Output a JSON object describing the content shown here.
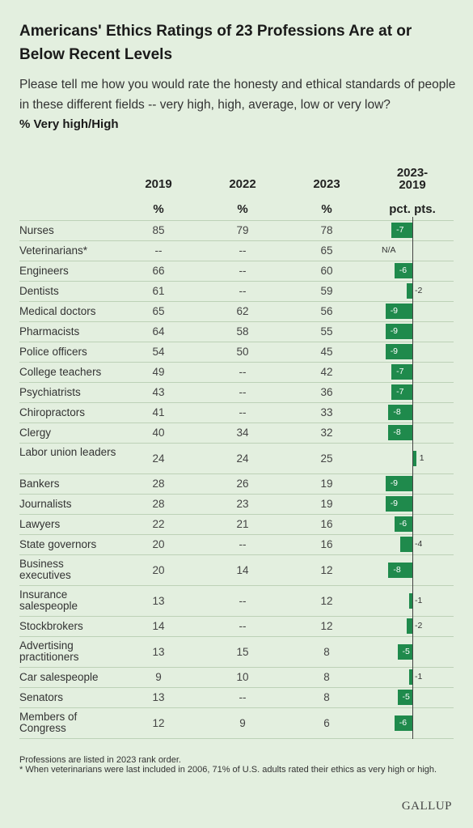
{
  "title": "Americans' Ethics Ratings of 23 Professions Are at or Below Recent Levels",
  "subtitle": "Please tell me how you would rate the honesty and ethical standards of people in these different fields -- very high, high, average, low or very low?",
  "metric": "% Very high/High",
  "columns": {
    "c2019": "2019",
    "c2022": "2022",
    "c2023": "2023",
    "diff_line1": "2023-",
    "diff_line2": "2019",
    "pct": "%",
    "pctpts": "pct. pts."
  },
  "colors": {
    "background": "#e3efdf",
    "bar": "#1f8a4c"
  },
  "chart_data": {
    "type": "bar",
    "ylabel": "pct. pts.",
    "categories": [
      "Nurses",
      "Veterinarians*",
      "Engineers",
      "Dentists",
      "Medical doctors",
      "Pharmacists",
      "Police officers",
      "College teachers",
      "Psychiatrists",
      "Chiropractors",
      "Clergy",
      "Labor union leaders",
      "Bankers",
      "Journalists",
      "Lawyers",
      "State governors",
      "Business executives",
      "Insurance salespeople",
      "Stockbrokers",
      "Advertising practitioners",
      "Car salespeople",
      "Senators",
      "Members of Congress"
    ],
    "rows": [
      {
        "label": "Nurses",
        "v2019": "85",
        "v2022": "79",
        "v2023": "78",
        "diff": -7,
        "diff_label": "-7"
      },
      {
        "label": "Veterinarians*",
        "v2019": "--",
        "v2022": "--",
        "v2023": "65",
        "diff": null,
        "diff_label": "N/A"
      },
      {
        "label": "Engineers",
        "v2019": "66",
        "v2022": "--",
        "v2023": "60",
        "diff": -6,
        "diff_label": "-6"
      },
      {
        "label": "Dentists",
        "v2019": "61",
        "v2022": "--",
        "v2023": "59",
        "diff": -2,
        "diff_label": "-2"
      },
      {
        "label": "Medical doctors",
        "v2019": "65",
        "v2022": "62",
        "v2023": "56",
        "diff": -9,
        "diff_label": "-9"
      },
      {
        "label": "Pharmacists",
        "v2019": "64",
        "v2022": "58",
        "v2023": "55",
        "diff": -9,
        "diff_label": "-9"
      },
      {
        "label": "Police officers",
        "v2019": "54",
        "v2022": "50",
        "v2023": "45",
        "diff": -9,
        "diff_label": "-9"
      },
      {
        "label": "College teachers",
        "v2019": "49",
        "v2022": "--",
        "v2023": "42",
        "diff": -7,
        "diff_label": "-7"
      },
      {
        "label": "Psychiatrists",
        "v2019": "43",
        "v2022": "--",
        "v2023": "36",
        "diff": -7,
        "diff_label": "-7"
      },
      {
        "label": "Chiropractors",
        "v2019": "41",
        "v2022": "--",
        "v2023": "33",
        "diff": -8,
        "diff_label": "-8"
      },
      {
        "label": "Clergy",
        "v2019": "40",
        "v2022": "34",
        "v2023": "32",
        "diff": -8,
        "diff_label": "-8"
      },
      {
        "label": "Labor union leaders",
        "v2019": "24",
        "v2022": "24",
        "v2023": "25",
        "diff": 1,
        "diff_label": "1"
      },
      {
        "label": "Bankers",
        "v2019": "28",
        "v2022": "26",
        "v2023": "19",
        "diff": -9,
        "diff_label": "-9"
      },
      {
        "label": "Journalists",
        "v2019": "28",
        "v2022": "23",
        "v2023": "19",
        "diff": -9,
        "diff_label": "-9"
      },
      {
        "label": "Lawyers",
        "v2019": "22",
        "v2022": "21",
        "v2023": "16",
        "diff": -6,
        "diff_label": "-6"
      },
      {
        "label": "State governors",
        "v2019": "20",
        "v2022": "--",
        "v2023": "16",
        "diff": -4,
        "diff_label": "-4"
      },
      {
        "label": "Business executives",
        "v2019": "20",
        "v2022": "14",
        "v2023": "12",
        "diff": -8,
        "diff_label": "-8"
      },
      {
        "label": "Insurance salespeople",
        "v2019": "13",
        "v2022": "--",
        "v2023": "12",
        "diff": -1,
        "diff_label": "-1"
      },
      {
        "label": "Stockbrokers",
        "v2019": "14",
        "v2022": "--",
        "v2023": "12",
        "diff": -2,
        "diff_label": "-2"
      },
      {
        "label": "Advertising practitioners",
        "v2019": "13",
        "v2022": "15",
        "v2023": "8",
        "diff": -5,
        "diff_label": "-5"
      },
      {
        "label": "Car salespeople",
        "v2019": "9",
        "v2022": "10",
        "v2023": "8",
        "diff": -1,
        "diff_label": "-1"
      },
      {
        "label": "Senators",
        "v2019": "13",
        "v2022": "--",
        "v2023": "8",
        "diff": -5,
        "diff_label": "-5"
      },
      {
        "label": "Members of Congress",
        "v2019": "12",
        "v2022": "9",
        "v2023": "6",
        "diff": -6,
        "diff_label": "-6"
      }
    ]
  },
  "footnotes": {
    "line1": "Professions are listed in 2023 rank order.",
    "line2": "* When veterinarians were last included in 2006, 71% of U.S. adults rated their ethics as very high or high."
  },
  "brand": "GALLUP"
}
